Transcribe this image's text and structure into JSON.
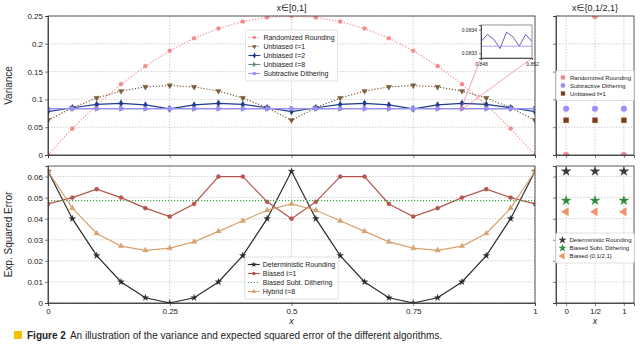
{
  "chart_data": [
    {
      "type": "line",
      "title": "x∈[0,1]",
      "y_label": "Variance",
      "x": [
        0,
        0.05,
        0.1,
        0.15,
        0.2,
        0.25,
        0.3,
        0.35,
        0.4,
        0.45,
        0.5,
        0.55,
        0.6,
        0.65,
        0.7,
        0.75,
        0.8,
        0.85,
        0.9,
        0.95,
        1
      ],
      "xlim": [
        0,
        1
      ],
      "xticks": [
        0,
        0.25,
        0.5,
        0.75,
        1
      ],
      "ylim": [
        0,
        0.25
      ],
      "yticks": [
        0,
        0.05,
        0.1,
        0.15,
        0.2,
        0.25
      ],
      "grid": true,
      "legend": "upper center",
      "tick_labels": "y",
      "series": [
        {
          "name": "Randomized Rounding",
          "color": "#f28b8f",
          "marker": "circle",
          "line_style": "dotted",
          "values": [
            0,
            0.0475,
            0.09,
            0.1275,
            0.16,
            0.1875,
            0.21,
            0.2275,
            0.24,
            0.2475,
            0.25,
            0.2475,
            0.24,
            0.2275,
            0.21,
            0.1875,
            0.16,
            0.1275,
            0.09,
            0.0475,
            0
          ]
        },
        {
          "name": "Unbiased ℓ=1",
          "color": "#7b5b3a",
          "marker": "triangle-down",
          "line_style": "dotted",
          "values": [
            0.0625,
            0.085,
            0.1025,
            0.115,
            0.1225,
            0.125,
            0.1225,
            0.115,
            0.1025,
            0.085,
            0.0625,
            0.085,
            0.1025,
            0.115,
            0.1225,
            0.125,
            0.1225,
            0.115,
            0.1025,
            0.085,
            0.0625
          ]
        },
        {
          "name": "Unbiased ℓ=2",
          "color": "#1c3d8c",
          "marker": "diamond",
          "line_style": "solid",
          "values": [
            0.078,
            0.085,
            0.091,
            0.093,
            0.09,
            0.083,
            0.09,
            0.093,
            0.091,
            0.085,
            0.078,
            0.085,
            0.091,
            0.093,
            0.09,
            0.083,
            0.09,
            0.093,
            0.091,
            0.085,
            0.078
          ]
        },
        {
          "name": "Unbiased ℓ=8",
          "color": "#6e8a80",
          "marker": "triangle-right",
          "line_style": "solid",
          "values": [
            0.0833,
            0.0835,
            0.0834,
            0.0835,
            0.0834,
            0.0833,
            0.0834,
            0.0835,
            0.0834,
            0.0835,
            0.0833,
            0.0835,
            0.0834,
            0.0835,
            0.0834,
            0.0833,
            0.0834,
            0.0835,
            0.0834,
            0.0835,
            0.0833
          ]
        },
        {
          "name": "Subtractive Dithering",
          "color": "#9b8dff",
          "marker": "circle",
          "line_style": "solid",
          "values": [
            0.0833,
            0.0833,
            0.0833,
            0.0833,
            0.0833,
            0.0833,
            0.0833,
            0.0833,
            0.0833,
            0.0833,
            0.0833,
            0.0833,
            0.0833,
            0.0833,
            0.0833,
            0.0833,
            0.0833,
            0.0833,
            0.0833,
            0.0833,
            0.0833
          ]
        }
      ]
    },
    {
      "type": "scatter",
      "title": "x∈{0,1/2,1}",
      "categories": [
        "0",
        "1/2",
        "1"
      ],
      "ylim": [
        0,
        0.25
      ],
      "yticks": [
        0,
        0.05,
        0.1,
        0.15,
        0.2,
        0.25
      ],
      "grid": true,
      "legend": "center",
      "tick_labels": false,
      "series": [
        {
          "name": "Randomized Rounding",
          "color": "#f28b8f",
          "marker": "circle",
          "line_style": "none",
          "values": [
            0,
            0.25,
            0
          ]
        },
        {
          "name": "Subtractive Dithering",
          "color": "#9b8dff",
          "marker": "circle",
          "line_style": "none",
          "values": [
            0.0833,
            0.0833,
            0.0833
          ]
        },
        {
          "name": "Unbiased ℓ=1",
          "color": "#7b3f1f",
          "marker": "square",
          "line_style": "none",
          "values": [
            0.0625,
            0.0625,
            0.0625
          ]
        }
      ]
    },
    {
      "type": "line",
      "x_label": "x",
      "y_label": "Exp. Squared Error",
      "x": [
        0,
        0.05,
        0.1,
        0.15,
        0.2,
        0.25,
        0.3,
        0.35,
        0.4,
        0.45,
        0.5,
        0.55,
        0.6,
        0.65,
        0.7,
        0.75,
        0.8,
        0.85,
        0.9,
        0.95,
        1
      ],
      "xlim": [
        0,
        1
      ],
      "xticks": [
        0,
        0.25,
        0.5,
        0.75,
        1
      ],
      "ylim": [
        0,
        0.065
      ],
      "yticks": [
        0,
        0.01,
        0.02,
        0.03,
        0.04,
        0.05,
        0.06
      ],
      "grid": true,
      "legend": "lower center",
      "series": [
        {
          "name": "Deterministic Rounding",
          "color": "#2b2b2b",
          "marker": "star",
          "line_style": "solid",
          "values": [
            0.0625,
            0.04,
            0.0225,
            0.01,
            0.0025,
            0,
            0.0025,
            0.01,
            0.0225,
            0.04,
            0.0625,
            0.04,
            0.0225,
            0.01,
            0.0025,
            0,
            0.0025,
            0.01,
            0.0225,
            0.04,
            0.0625
          ]
        },
        {
          "name": "Biased ℓ=1",
          "color": "#b5564e",
          "marker": "circle",
          "line_style": "solid",
          "values": [
            0.047,
            0.05,
            0.054,
            0.05,
            0.045,
            0.041,
            0.047,
            0.06,
            0.06,
            0.048,
            0.04,
            0.048,
            0.06,
            0.06,
            0.047,
            0.041,
            0.045,
            0.05,
            0.054,
            0.05,
            0.047
          ]
        },
        {
          "name": "Biased Subt. Dithering",
          "color": "#3aa845",
          "marker": "none",
          "line_style": "dotted",
          "values": [
            0.0486,
            0.0486,
            0.0486,
            0.0486,
            0.0486,
            0.0486,
            0.0486,
            0.0486,
            0.0486,
            0.0486,
            0.0486,
            0.0486,
            0.0486,
            0.0486,
            0.0486,
            0.0486,
            0.0486,
            0.0486,
            0.0486,
            0.0486,
            0.0486
          ]
        },
        {
          "name": "Hybrid ℓ=8",
          "color": "#d7a26e",
          "marker": "triangle-up",
          "line_style": "solid",
          "values": [
            0.0625,
            0.045,
            0.033,
            0.027,
            0.025,
            0.026,
            0.029,
            0.034,
            0.039,
            0.044,
            0.047,
            0.044,
            0.039,
            0.034,
            0.029,
            0.026,
            0.025,
            0.027,
            0.033,
            0.045,
            0.0625
          ]
        }
      ]
    },
    {
      "type": "scatter",
      "x_label": "x",
      "categories": [
        "0",
        "1/2",
        "1"
      ],
      "ylim": [
        0,
        0.065
      ],
      "yticks": [
        0,
        0.01,
        0.02,
        0.03,
        0.04,
        0.05,
        0.06
      ],
      "grid": true,
      "legend": "lower center",
      "tick_labels": "x",
      "series": [
        {
          "name": "Deterministic Rounding",
          "color": "#3a3a3a",
          "marker": "star",
          "line_style": "none",
          "values": [
            0.0625,
            0.0625,
            0.0625
          ]
        },
        {
          "name": "Biased Subt. Dithering",
          "color": "#2e8b3e",
          "marker": "star",
          "line_style": "none",
          "values": [
            0.0486,
            0.0486,
            0.0486
          ]
        },
        {
          "name": "Biased {0,1/2,1}",
          "color": "#f0956a",
          "marker": "triangle-left",
          "line_style": "none",
          "values": [
            0.0433,
            0.0433,
            0.0433
          ]
        }
      ]
    },
    {
      "type": "line",
      "x": [
        0.848,
        0.8485,
        0.849,
        0.8495,
        0.85,
        0.8505,
        0.851,
        0.8515,
        0.852
      ],
      "xlim": [
        0.848,
        0.852
      ],
      "xticks": [
        0.848,
        0.852
      ],
      "ylim": [
        0.08328,
        0.08342
      ],
      "yticks": [
        0.0833,
        0.0834
      ],
      "series": [
        {
          "color": "#3d3d9e",
          "marker": "none",
          "line_style": "solid",
          "values": [
            0.08335,
            0.08338,
            0.08336,
            0.08332,
            0.08339,
            0.08337,
            0.08333,
            0.08338,
            0.08335
          ]
        },
        {
          "color": "#9b8dff",
          "marker": "none",
          "line_style": "solid",
          "values": [
            0.08333,
            0.08333,
            0.08333,
            0.08333,
            0.08333,
            0.08333,
            0.08333,
            0.08333,
            0.08333
          ]
        }
      ]
    }
  ],
  "caption": {
    "label": "Figure 2",
    "text": "An illustration of the variance and expected squared error of the different algorithms."
  }
}
